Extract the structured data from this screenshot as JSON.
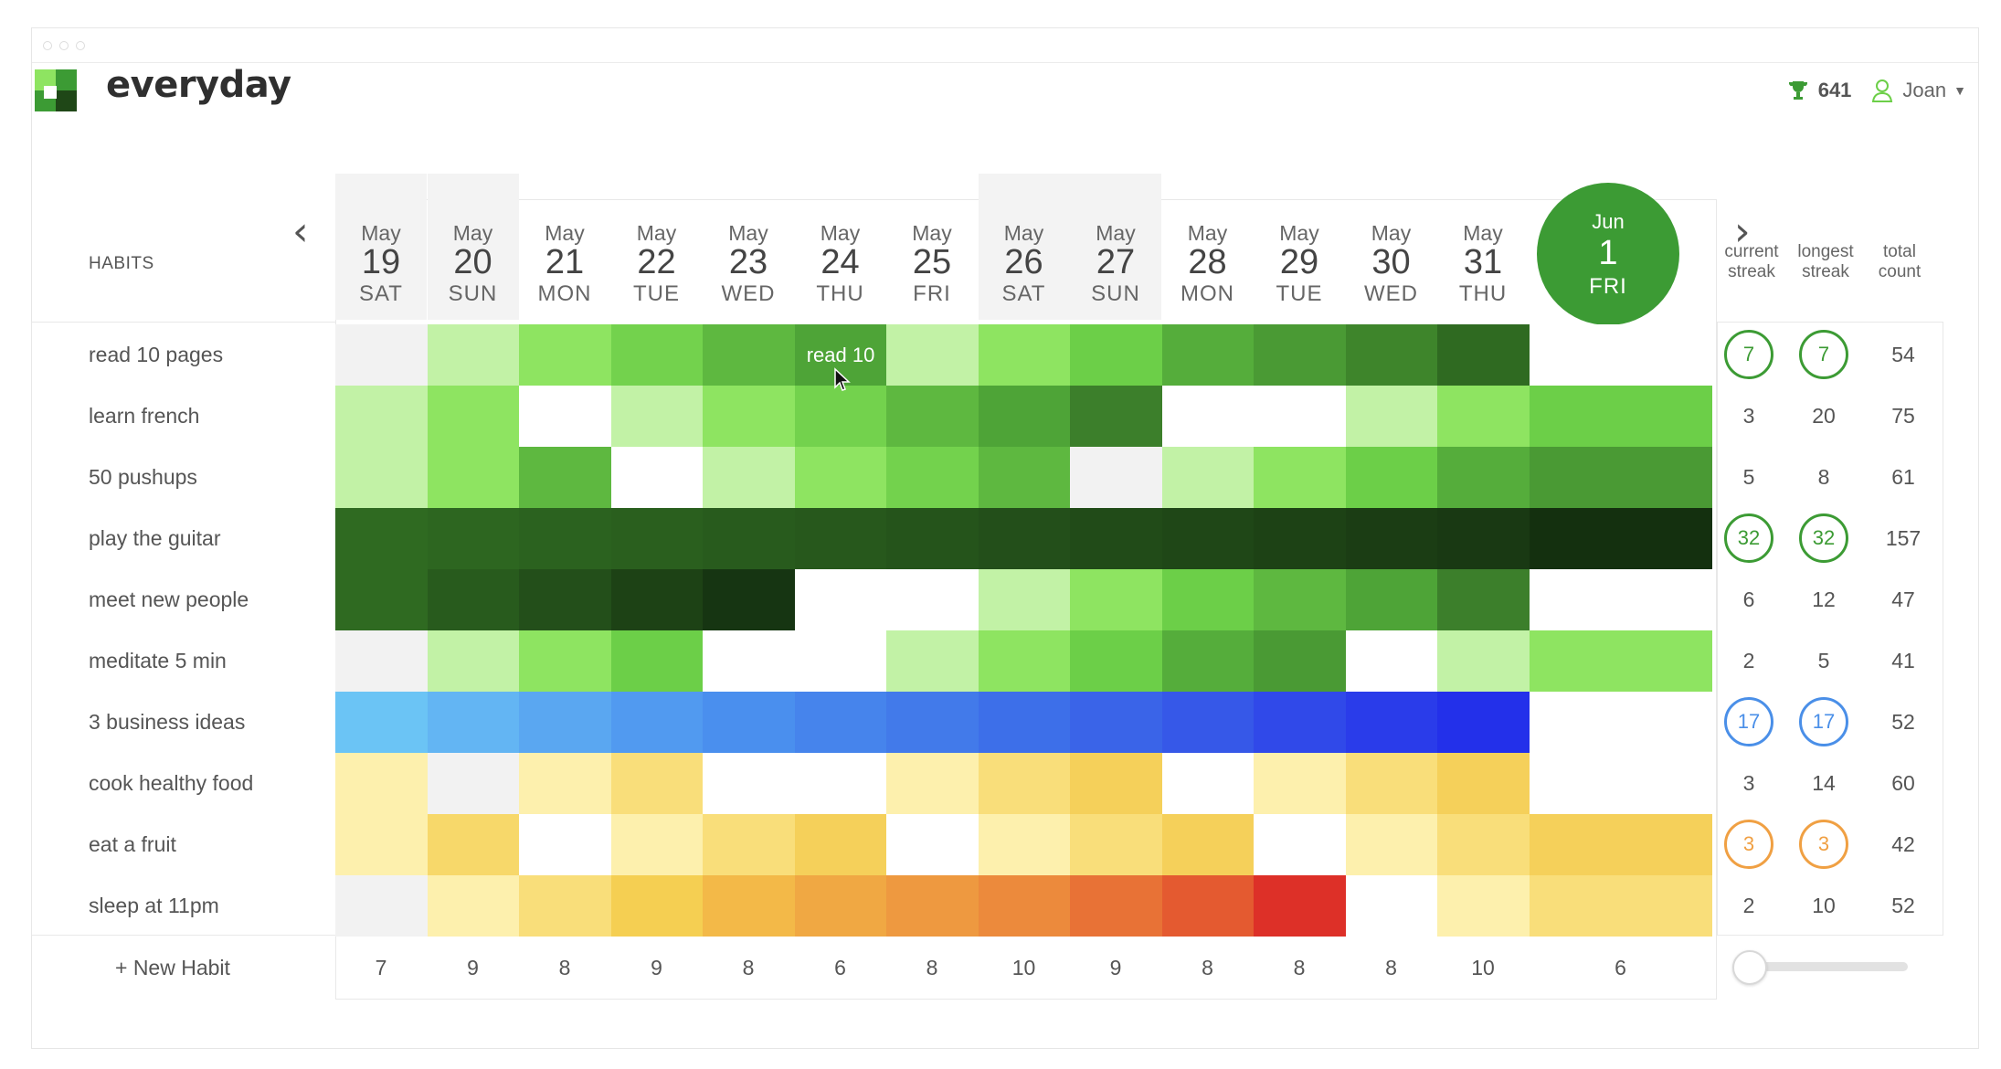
{
  "app": {
    "name": "everyday"
  },
  "user": {
    "score": "641",
    "name": "Joan"
  },
  "grid": {
    "habits_header": "HABITS",
    "nav_prev": "‹",
    "nav_next": "›",
    "days": [
      {
        "month": "May",
        "day": "19",
        "weekday": "SAT",
        "total": "7"
      },
      {
        "month": "May",
        "day": "20",
        "weekday": "SUN",
        "total": "9"
      },
      {
        "month": "May",
        "day": "21",
        "weekday": "MON",
        "total": "8"
      },
      {
        "month": "May",
        "day": "22",
        "weekday": "TUE",
        "total": "9"
      },
      {
        "month": "May",
        "day": "23",
        "weekday": "WED",
        "total": "8"
      },
      {
        "month": "May",
        "day": "24",
        "weekday": "THU",
        "total": "6"
      },
      {
        "month": "May",
        "day": "25",
        "weekday": "FRI",
        "total": "8"
      },
      {
        "month": "May",
        "day": "26",
        "weekday": "SAT",
        "total": "10"
      },
      {
        "month": "May",
        "day": "27",
        "weekday": "SUN",
        "total": "9"
      },
      {
        "month": "May",
        "day": "28",
        "weekday": "MON",
        "total": "8"
      },
      {
        "month": "May",
        "day": "29",
        "weekday": "TUE",
        "total": "8"
      },
      {
        "month": "May",
        "day": "30",
        "weekday": "WED",
        "total": "8"
      },
      {
        "month": "May",
        "day": "31",
        "weekday": "THU",
        "total": "10"
      }
    ],
    "today": {
      "month": "Jun",
      "day": "1",
      "weekday": "FRI",
      "total": "6"
    },
    "tooltip": "read 10",
    "new_habit": "+ New Habit",
    "stat_headers": {
      "current": [
        "current",
        "streak"
      ],
      "longest": [
        "longest",
        "streak"
      ],
      "total": [
        "total",
        "count"
      ]
    },
    "habits": [
      {
        "name": "read 10 pages",
        "current": "7",
        "longest": "7",
        "total": "54",
        "ring": "#3c9b34",
        "colors": [
          "#f2f2f2",
          "#c2f2a6",
          "#8ee461",
          "#73d24d",
          "#5eb840",
          "#4ea437",
          "#c2f2a6",
          "#8ee461",
          "#6ccf48",
          "#55ad3b",
          "#4a9a34",
          "#3e852b",
          "#2f6a21",
          "#ffffff"
        ]
      },
      {
        "name": "learn french",
        "current": "3",
        "longest": "20",
        "total": "75",
        "ring": null,
        "colors": [
          "#c2f2a6",
          "#8ee461",
          "#ffffff",
          "#c2f2a6",
          "#8ee461",
          "#73d24d",
          "#5eb840",
          "#4ea437",
          "#3c7f2b",
          "#ffffff",
          "#ffffff",
          "#c2f2a6",
          "#8ee461",
          "#6ccf48"
        ]
      },
      {
        "name": "50 pushups",
        "current": "5",
        "longest": "8",
        "total": "61",
        "ring": null,
        "colors": [
          "#c2f2a6",
          "#8ee461",
          "#5eb840",
          "#ffffff",
          "#c2f2a6",
          "#8ee461",
          "#73d24d",
          "#5eb840",
          "#f2f2f2",
          "#c2f2a6",
          "#8ee461",
          "#6ccf48",
          "#55ad3b",
          "#4a9a34"
        ]
      },
      {
        "name": "play the guitar",
        "current": "32",
        "longest": "32",
        "total": "157",
        "ring": "#3c9b34",
        "colors": [
          "#2f6a21",
          "#2d6620",
          "#2b621f",
          "#2a5f1e",
          "#285b1d",
          "#27581c",
          "#25541b",
          "#234f1a",
          "#214b18",
          "#1f4717",
          "#1d4215",
          "#1b3d14",
          "#193913",
          "#14300f"
        ]
      },
      {
        "name": "meet new people",
        "current": "6",
        "longest": "12",
        "total": "47",
        "ring": null,
        "colors": [
          "#2f6a21",
          "#285b1d",
          "#234f1a",
          "#1d4215",
          "#163512",
          "#ffffff",
          "#ffffff",
          "#c2f2a6",
          "#8ee461",
          "#6ccf48",
          "#5eb840",
          "#4ea437",
          "#3c7f2b",
          "#ffffff"
        ]
      },
      {
        "name": "meditate 5 min",
        "current": "2",
        "longest": "5",
        "total": "41",
        "ring": null,
        "colors": [
          "#f2f2f2",
          "#c2f2a6",
          "#8ee461",
          "#6ccf48",
          "#ffffff",
          "#ffffff",
          "#c2f2a6",
          "#8ee461",
          "#6ccf48",
          "#55ad3b",
          "#4a9a34",
          "#ffffff",
          "#c2f2a6",
          "#8ee461"
        ]
      },
      {
        "name": "3 business ideas",
        "current": "17",
        "longest": "17",
        "total": "52",
        "ring": "#4a8fe8",
        "colors": [
          "#6bc4f5",
          "#63b5f3",
          "#5aa7f1",
          "#519af0",
          "#4a8fee",
          "#4684ec",
          "#427aea",
          "#3d6fe9",
          "#3a64e8",
          "#3658e8",
          "#3049e9",
          "#2a3cea",
          "#2330ea",
          "#ffffff"
        ]
      },
      {
        "name": "cook healthy food",
        "current": "3",
        "longest": "14",
        "total": "60",
        "ring": null,
        "colors": [
          "#fdf0ad",
          "#f2f2f2",
          "#fdf0ad",
          "#f9de7a",
          "#ffffff",
          "#ffffff",
          "#fdf0ad",
          "#f9de7a",
          "#f5d05a",
          "#ffffff",
          "#fdf0ad",
          "#f9de7a",
          "#f5d05a",
          "#ffffff"
        ]
      },
      {
        "name": "eat a fruit",
        "current": "3",
        "longest": "3",
        "total": "42",
        "ring": "#f0a043",
        "colors": [
          "#fdf0ad",
          "#f7d86a",
          "#ffffff",
          "#fdf0ad",
          "#f9de7a",
          "#f5d05a",
          "#ffffff",
          "#fdf0ad",
          "#f9de7a",
          "#f5d05a",
          "#ffffff",
          "#fdf0ad",
          "#f9de7a",
          "#f5d05a"
        ]
      },
      {
        "name": "sleep at 11pm",
        "current": "2",
        "longest": "10",
        "total": "52",
        "ring": null,
        "colors": [
          "#f2f2f2",
          "#fdf0ad",
          "#f9de7a",
          "#f5cf52",
          "#f3b948",
          "#f0a843",
          "#ee9940",
          "#ec8a3c",
          "#e87236",
          "#e45a30",
          "#dd3028",
          "#ffffff",
          "#fdf0ad",
          "#f9de7a"
        ]
      }
    ]
  }
}
